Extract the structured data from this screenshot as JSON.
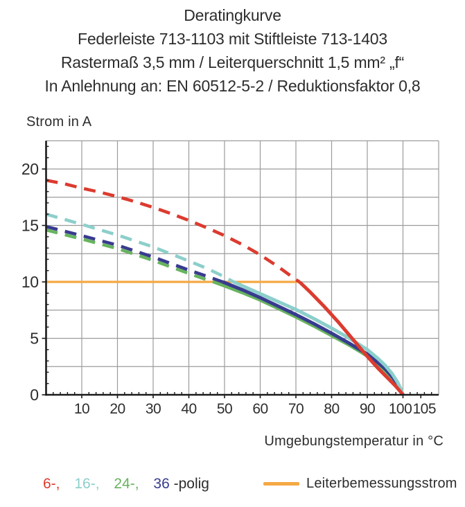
{
  "header": {
    "title_lines": [
      "Deratingkurve",
      "Federleiste 713-1103 mit Stiftleiste 713-1403",
      "Rastermaß 3,5 mm / Leiterquerschnitt 1,5 mm² „f“",
      "In Anlehnung an: EN 60512-5-2 / Reduktionsfaktor 0,8"
    ]
  },
  "axes": {
    "y_title": "Strom in A",
    "x_title": "Umgebungstemperatur in °C"
  },
  "legend": {
    "items": [
      {
        "label": "6-,",
        "color": "#dc3b2f"
      },
      {
        "label": "16-,",
        "color": "#8ccfcb"
      },
      {
        "label": "24-,",
        "color": "#68b35f"
      },
      {
        "label": "36",
        "color": "#383b8f"
      },
      {
        "label": "-polig",
        "color": "#2d2d2d"
      }
    ],
    "rated_current_label": "Leiterbemessungsstrom",
    "rated_current_color": "#f5a843"
  },
  "chart_data": {
    "type": "line",
    "title": "Deratingkurve",
    "xlabel": "Umgebungstemperatur in °C",
    "ylabel": "Strom in A",
    "xlim": [
      0,
      110
    ],
    "ylim": [
      0,
      22.5
    ],
    "x_major_ticks": [
      10,
      20,
      30,
      40,
      50,
      60,
      70,
      80,
      90,
      100,
      105
    ],
    "x_grid_step": 10,
    "x_minor_tick_step": 2,
    "y_major_ticks": [
      0,
      5,
      10,
      15,
      20
    ],
    "y_grid_step": 2.5,
    "y_minor_tick_step": 1,
    "grid": true,
    "grid_color": "#9b9b9b",
    "axis_color": "#1a1a1a",
    "legend_position": "bottom",
    "note": "curves are dashed above the rated current line (10 A) and solid below it",
    "series": [
      {
        "name": "6-polig",
        "color": "#dc3b2f",
        "dashed": [
          [
            0,
            19
          ],
          [
            5,
            18.7
          ],
          [
            10,
            18.3
          ],
          [
            15,
            17.95
          ],
          [
            20,
            17.55
          ],
          [
            25,
            17.1
          ],
          [
            30,
            16.6
          ],
          [
            35,
            16.05
          ],
          [
            40,
            15.45
          ],
          [
            45,
            14.8
          ],
          [
            50,
            14.1
          ],
          [
            55,
            13.3
          ],
          [
            60,
            12.4
          ],
          [
            65,
            11.35
          ],
          [
            70,
            10.2
          ],
          [
            71,
            10
          ]
        ],
        "solid": [
          [
            71,
            10
          ],
          [
            74,
            9.1
          ],
          [
            78,
            7.8
          ],
          [
            82,
            6.4
          ],
          [
            86,
            4.9
          ],
          [
            90,
            3.4
          ],
          [
            93,
            2.35
          ],
          [
            96,
            1.4
          ],
          [
            98,
            0.75
          ],
          [
            99.5,
            0.2
          ],
          [
            100,
            0
          ]
        ]
      },
      {
        "name": "16-polig",
        "color": "#8ccfcb",
        "dashed": [
          [
            0,
            16
          ],
          [
            10,
            15.1
          ],
          [
            20,
            14.15
          ],
          [
            30,
            13.1
          ],
          [
            40,
            11.85
          ],
          [
            45,
            11.2
          ],
          [
            50,
            10.45
          ],
          [
            52.5,
            10
          ]
        ],
        "solid": [
          [
            52.5,
            10
          ],
          [
            55,
            9.65
          ],
          [
            60,
            8.95
          ],
          [
            65,
            8.25
          ],
          [
            70,
            7.55
          ],
          [
            75,
            6.75
          ],
          [
            80,
            5.9
          ],
          [
            85,
            5.0
          ],
          [
            90,
            4.0
          ],
          [
            93,
            3.2
          ],
          [
            95,
            2.6
          ],
          [
            97,
            1.85
          ],
          [
            98.5,
            1.1
          ],
          [
            99.5,
            0.45
          ],
          [
            100,
            0
          ]
        ]
      },
      {
        "name": "24-polig",
        "color": "#68b35f",
        "dashed": [
          [
            0,
            14.6
          ],
          [
            10,
            13.8
          ],
          [
            20,
            12.95
          ],
          [
            30,
            11.9
          ],
          [
            40,
            10.75
          ],
          [
            44,
            10.3
          ],
          [
            47,
            10
          ]
        ],
        "solid": [
          [
            47,
            10
          ],
          [
            50,
            9.65
          ],
          [
            55,
            9.05
          ],
          [
            60,
            8.4
          ],
          [
            65,
            7.65
          ],
          [
            70,
            6.9
          ],
          [
            75,
            6.1
          ],
          [
            80,
            5.25
          ],
          [
            85,
            4.4
          ],
          [
            90,
            3.45
          ],
          [
            93,
            2.7
          ],
          [
            95,
            2.15
          ],
          [
            97,
            1.5
          ],
          [
            98.5,
            0.9
          ],
          [
            99.5,
            0.3
          ],
          [
            100,
            0
          ]
        ]
      },
      {
        "name": "36-polig",
        "color": "#383b8f",
        "dashed": [
          [
            0,
            14.9
          ],
          [
            10,
            14.1
          ],
          [
            20,
            13.25
          ],
          [
            30,
            12.2
          ],
          [
            40,
            11.05
          ],
          [
            45,
            10.5
          ],
          [
            49.5,
            10
          ]
        ],
        "solid": [
          [
            49.5,
            10
          ],
          [
            55,
            9.3
          ],
          [
            60,
            8.6
          ],
          [
            65,
            7.85
          ],
          [
            70,
            7.1
          ],
          [
            75,
            6.3
          ],
          [
            80,
            5.45
          ],
          [
            85,
            4.55
          ],
          [
            90,
            3.6
          ],
          [
            93,
            2.85
          ],
          [
            95,
            2.3
          ],
          [
            97,
            1.6
          ],
          [
            98.5,
            0.95
          ],
          [
            99.5,
            0.35
          ],
          [
            100,
            0
          ]
        ]
      },
      {
        "name": "Leiterbemessungsstrom",
        "color": "#f5a843",
        "solid": [
          [
            0,
            10
          ],
          [
            71,
            10
          ]
        ],
        "value": 10
      }
    ]
  }
}
